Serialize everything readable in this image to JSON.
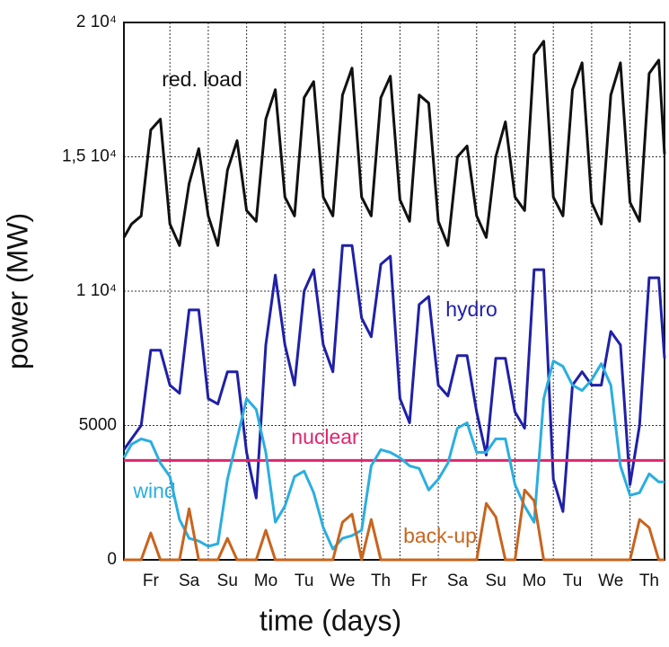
{
  "chart_data": {
    "type": "line",
    "xlabel": "time (days)",
    "ylabel": "power (MW)",
    "xlim": [
      -0.2,
      13.9
    ],
    "ylim": [
      0,
      20000
    ],
    "yticks": [
      0,
      5000,
      {
        "value": 10000,
        "label": "1 10⁴"
      },
      {
        "value": 15000,
        "label": "1,5 10⁴"
      },
      {
        "value": 20000,
        "label": "2 10⁴"
      }
    ],
    "xticks": [
      {
        "value": 0.5,
        "label": "Fr"
      },
      {
        "value": 1.5,
        "label": "Sa"
      },
      {
        "value": 2.5,
        "label": "Su"
      },
      {
        "value": 3.5,
        "label": "Mo"
      },
      {
        "value": 4.5,
        "label": "Tu"
      },
      {
        "value": 5.5,
        "label": "We"
      },
      {
        "value": 6.5,
        "label": "Th"
      },
      {
        "value": 7.5,
        "label": "Fr"
      },
      {
        "value": 8.5,
        "label": "Sa"
      },
      {
        "value": 9.5,
        "label": "Su"
      },
      {
        "value": 10.5,
        "label": "Mo"
      },
      {
        "value": 11.5,
        "label": "Tu"
      },
      {
        "value": 12.5,
        "label": "We"
      },
      {
        "value": 13.5,
        "label": "Th"
      }
    ],
    "grid": true,
    "x": [
      -0.2,
      0,
      0.25,
      0.5,
      0.75,
      1,
      1.25,
      1.5,
      1.75,
      2,
      2.25,
      2.5,
      2.75,
      3,
      3.25,
      3.5,
      3.75,
      4,
      4.25,
      4.5,
      4.75,
      5,
      5.25,
      5.5,
      5.75,
      6,
      6.25,
      6.5,
      6.75,
      7,
      7.25,
      7.5,
      7.75,
      8,
      8.25,
      8.5,
      8.75,
      9,
      9.25,
      9.5,
      9.75,
      10,
      10.25,
      10.5,
      10.75,
      11,
      11.25,
      11.5,
      11.75,
      12,
      12.25,
      12.5,
      12.75,
      13,
      13.25,
      13.5,
      13.75,
      13.9
    ],
    "series": [
      {
        "name": "red. load",
        "color": "#111111",
        "values": [
          12000,
          12500,
          12800,
          16000,
          16400,
          12500,
          11700,
          14000,
          15300,
          12800,
          11700,
          14500,
          15600,
          13000,
          12600,
          16400,
          17500,
          13500,
          12800,
          17200,
          17800,
          13500,
          12800,
          17300,
          18300,
          13500,
          12800,
          17200,
          18000,
          13400,
          12600,
          17300,
          17000,
          12600,
          11700,
          15000,
          15400,
          12800,
          12000,
          15000,
          16300,
          13500,
          13000,
          18800,
          19300,
          13500,
          12800,
          17500,
          18500,
          13300,
          12500,
          17300,
          18500,
          13300,
          12600,
          18100,
          18600,
          15100
        ]
      },
      {
        "name": "hydro",
        "color": "#2020a8",
        "values": [
          4100,
          4500,
          5000,
          7800,
          7800,
          6500,
          6200,
          9300,
          9300,
          6000,
          5800,
          7000,
          7000,
          4000,
          2300,
          8000,
          10600,
          8000,
          6500,
          10000,
          10800,
          8000,
          7000,
          11700,
          11700,
          9000,
          8300,
          11000,
          11300,
          6000,
          5100,
          9500,
          9800,
          6500,
          6100,
          7600,
          7600,
          5500,
          3900,
          7500,
          7500,
          5500,
          4900,
          10800,
          10800,
          3000,
          1800,
          6500,
          7000,
          6500,
          6500,
          8500,
          8000,
          2800,
          5000,
          10500,
          10500,
          7500
        ]
      },
      {
        "name": "nuclear",
        "color": "#e0266e",
        "values": [
          3700,
          3700,
          3700,
          3700,
          3700,
          3700,
          3700,
          3700,
          3700,
          3700,
          3700,
          3700,
          3700,
          3700,
          3700,
          3700,
          3700,
          3700,
          3700,
          3700,
          3700,
          3700,
          3700,
          3700,
          3700,
          3700,
          3700,
          3700,
          3700,
          3700,
          3700,
          3700,
          3700,
          3700,
          3700,
          3700,
          3700,
          3700,
          3700,
          3700,
          3700,
          3700,
          3700,
          3700,
          3700,
          3700,
          3700,
          3700,
          3700,
          3700,
          3700,
          3700,
          3700,
          3700,
          3700,
          3700,
          3700,
          3700
        ]
      },
      {
        "name": "wind",
        "color": "#2aaee0",
        "values": [
          3800,
          4300,
          4500,
          4400,
          3600,
          3100,
          1500,
          800,
          700,
          500,
          600,
          3000,
          4500,
          6000,
          5600,
          4000,
          1400,
          2000,
          3100,
          3300,
          2500,
          1200,
          400,
          800,
          900,
          1100,
          3500,
          4100,
          4000,
          3800,
          3500,
          3400,
          2600,
          3000,
          3600,
          4900,
          5100,
          4000,
          4000,
          4500,
          4500,
          2800,
          2000,
          1400,
          6000,
          7400,
          7200,
          6500,
          6300,
          6700,
          7300,
          6500,
          3500,
          2400,
          2500,
          3200,
          2900,
          2900
        ]
      },
      {
        "name": "back-up",
        "color": "#c8641e",
        "values": [
          0,
          0,
          0,
          1000,
          0,
          0,
          0,
          1900,
          0,
          0,
          0,
          800,
          0,
          0,
          0,
          1100,
          0,
          0,
          0,
          0,
          0,
          0,
          0,
          1400,
          1700,
          0,
          1500,
          0,
          0,
          0,
          0,
          0,
          0,
          0,
          0,
          0,
          0,
          0,
          2100,
          1600,
          0,
          0,
          2600,
          2200,
          0,
          0,
          0,
          0,
          0,
          0,
          0,
          0,
          0,
          0,
          1500,
          1200,
          0,
          0
        ]
      }
    ]
  }
}
